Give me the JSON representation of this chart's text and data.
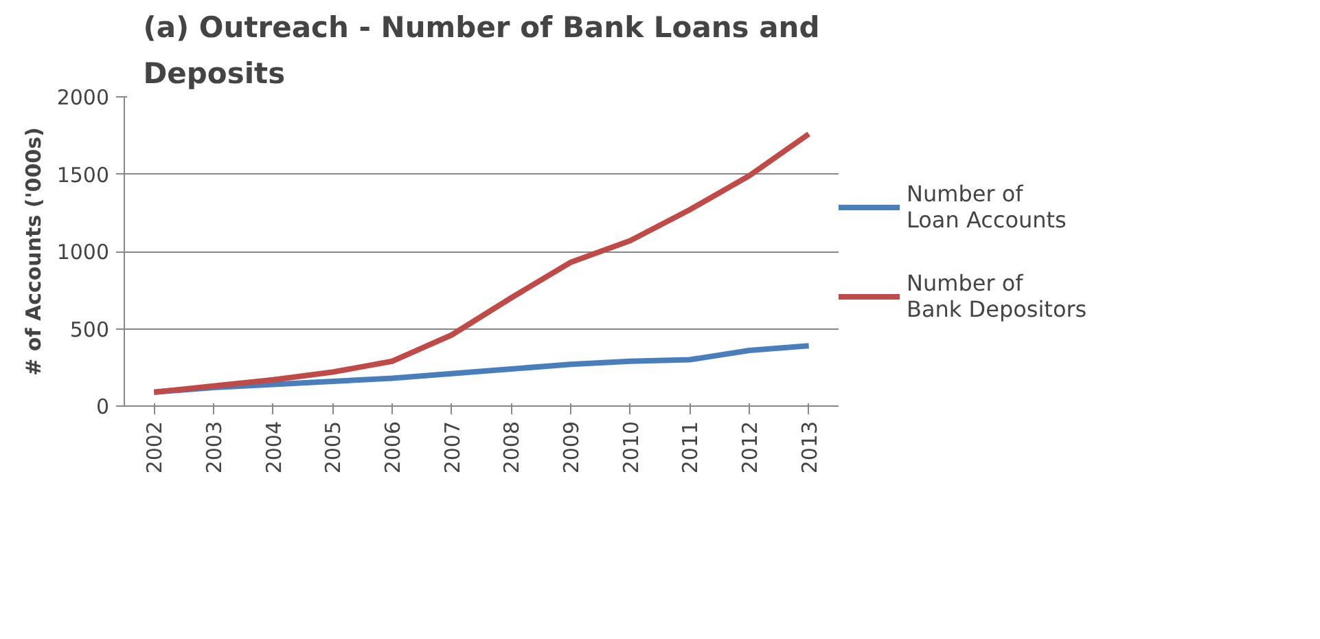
{
  "chart_data": {
    "type": "line",
    "title": "(a) Outreach - Number of Bank Loans and Deposits",
    "ylabel": "# of Accounts ('000s)",
    "categories": [
      "2002",
      "2003",
      "2004",
      "2005",
      "2006",
      "2007",
      "2008",
      "2009",
      "2010",
      "2011",
      "2012",
      "2013"
    ],
    "series": [
      {
        "name": "Number of Loan Accounts",
        "color": "#4a7ebb",
        "values": [
          90,
          120,
          140,
          160,
          180,
          210,
          240,
          270,
          290,
          300,
          360,
          390
        ]
      },
      {
        "name": "Number of Bank Depositors",
        "color": "#be4b48",
        "values": [
          90,
          130,
          170,
          220,
          290,
          460,
          700,
          930,
          1070,
          1270,
          1490,
          1760
        ]
      }
    ],
    "ylim": [
      0,
      2000
    ],
    "yticks": [
      0,
      500,
      1000,
      1500,
      2000
    ],
    "grid": "y",
    "legend": "right",
    "marker": "none",
    "line_style": "solid"
  }
}
